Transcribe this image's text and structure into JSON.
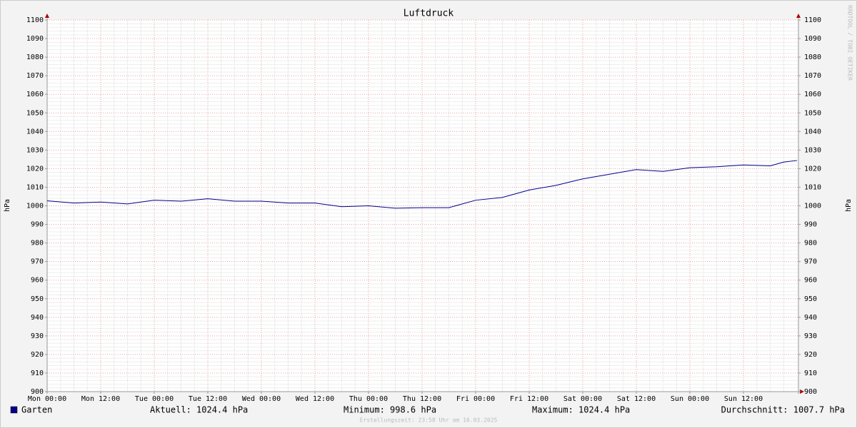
{
  "chart_data": {
    "type": "line",
    "title": "Luftdruck",
    "y_label": "hPa",
    "y2_label": "hPa",
    "x": [
      0,
      6,
      12,
      18,
      24,
      30,
      36,
      42,
      48,
      54,
      60,
      66,
      72,
      78,
      84,
      90,
      96,
      102,
      108,
      114,
      120,
      126,
      132,
      138,
      144,
      150,
      156,
      162,
      165,
      168
    ],
    "xlim": [
      0,
      168
    ],
    "xticks": [
      {
        "value": 0,
        "label": "Mon 00:00"
      },
      {
        "value": 12,
        "label": "Mon 12:00"
      },
      {
        "value": 24,
        "label": "Tue 00:00"
      },
      {
        "value": 36,
        "label": "Tue 12:00"
      },
      {
        "value": 48,
        "label": "Wed 00:00"
      },
      {
        "value": 60,
        "label": "Wed 12:00"
      },
      {
        "value": 72,
        "label": "Thu 00:00"
      },
      {
        "value": 84,
        "label": "Thu 12:00"
      },
      {
        "value": 96,
        "label": "Fri 00:00"
      },
      {
        "value": 108,
        "label": "Fri 12:00"
      },
      {
        "value": 120,
        "label": "Sat 00:00"
      },
      {
        "value": 132,
        "label": "Sat 12:00"
      },
      {
        "value": 144,
        "label": "Sun 00:00"
      },
      {
        "value": 156,
        "label": "Sun 12:00"
      }
    ],
    "ylim": [
      900,
      1100
    ],
    "yticks": [
      900,
      910,
      920,
      930,
      940,
      950,
      960,
      970,
      980,
      990,
      1000,
      1010,
      1020,
      1030,
      1040,
      1050,
      1060,
      1070,
      1080,
      1090,
      1100
    ],
    "y2lim": [
      900,
      1100
    ],
    "y2ticks": [
      900,
      910,
      920,
      930,
      940,
      950,
      960,
      970,
      980,
      990,
      1000,
      1010,
      1020,
      1030,
      1040,
      1050,
      1060,
      1070,
      1080,
      1090,
      1100
    ],
    "grid": true,
    "series": [
      {
        "name": "Garten",
        "color": "#00008b",
        "values": [
          1002.7,
          1001.5,
          1002,
          1001,
          1003,
          1002.5,
          1003.8,
          1002.5,
          1002.5,
          1001.5,
          1001.5,
          999.5,
          1000,
          998.7,
          999,
          999,
          1003,
          1004.5,
          1008.5,
          1011,
          1014.5,
          1017,
          1019.5,
          1018.5,
          1020.5,
          1021,
          1022,
          1021.5,
          1023.5,
          1024.4
        ]
      }
    ],
    "legend_stats": [
      "Aktuell: 1024.4 hPa",
      "Minimum: 998.6 hPa",
      "Maximum: 1024.4 hPa",
      "Durchschnitt: 1007.7 hPa"
    ],
    "footer": "Erstellungszeit: 23:58 Uhr am 16.03.2025",
    "watermark": "RRDTOOL / TOBI OETIKER"
  }
}
